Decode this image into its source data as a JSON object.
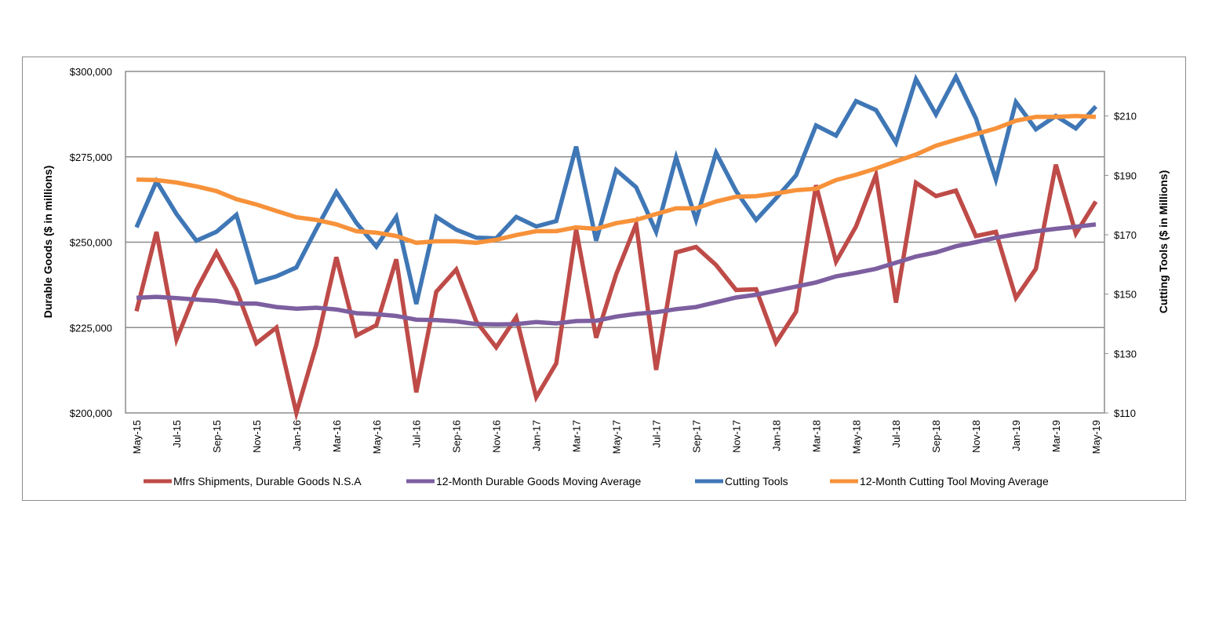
{
  "chart_data": {
    "type": "line",
    "title": "",
    "ylabel": "Durable Goods ($ in millions)",
    "y2label": "Cutting Tools ($ in Millions)",
    "ylim": [
      200000,
      300000
    ],
    "y2lim": [
      110,
      225
    ],
    "yticks": [
      "$200,000",
      "$225,000",
      "$250,000",
      "$275,000",
      "$300,000"
    ],
    "ytick_values": [
      200000,
      225000,
      250000,
      275000,
      300000
    ],
    "y2ticks": [
      "$110",
      "$130",
      "$150",
      "$170",
      "$190",
      "$210"
    ],
    "y2tick_values": [
      110,
      130,
      150,
      170,
      190,
      210
    ],
    "grid": true,
    "legend_placement": "bottom",
    "x": [
      "May-15",
      "Jun-15",
      "Jul-15",
      "Aug-15",
      "Sep-15",
      "Oct-15",
      "Nov-15",
      "Dec-15",
      "Jan-16",
      "Feb-16",
      "Mar-16",
      "Apr-16",
      "May-16",
      "Jun-16",
      "Jul-16",
      "Aug-16",
      "Sep-16",
      "Oct-16",
      "Nov-16",
      "Dec-16",
      "Jan-17",
      "Feb-17",
      "Mar-17",
      "Apr-17",
      "May-17",
      "Jun-17",
      "Jul-17",
      "Aug-17",
      "Sep-17",
      "Oct-17",
      "Nov-17",
      "Dec-17",
      "Jan-18",
      "Feb-18",
      "Mar-18",
      "Apr-18",
      "May-18",
      "Jun-18",
      "Jul-18",
      "Aug-18",
      "Sep-18",
      "Oct-18",
      "Nov-18",
      "Dec-18",
      "Jan-19",
      "Feb-19",
      "Mar-19",
      "Apr-19",
      "May-19"
    ],
    "xtick_labels": [
      "May-15",
      "Jul-15",
      "Sep-15",
      "Nov-15",
      "Jan-16",
      "Mar-16",
      "May-16",
      "Jul-16",
      "Sep-16",
      "Nov-16",
      "Jan-17",
      "Mar-17",
      "May-17",
      "Jul-17",
      "Sep-17",
      "Nov-17",
      "Jan-18",
      "Mar-18",
      "May-18",
      "Jul-18",
      "Sep-18",
      "Nov-18",
      "Jan-19",
      "Mar-19",
      "May-19"
    ],
    "series": [
      {
        "name": "Mfrs Shipments, Durable Goods N.S.A",
        "axis": "left",
        "color": "#be4b48",
        "values": [
          229800,
          253000,
          221500,
          236000,
          247000,
          236000,
          220400,
          225000,
          200000,
          220000,
          245600,
          222700,
          225700,
          245000,
          206000,
          235500,
          242000,
          226800,
          219200,
          228000,
          204600,
          214500,
          253700,
          222000,
          240600,
          255300,
          212600,
          247000,
          248600,
          243300,
          236000,
          236200,
          220600,
          229600,
          266700,
          244300,
          254600,
          269700,
          232300,
          267400,
          263500,
          265100,
          251800,
          253000,
          233700,
          242200,
          272700,
          252500,
          261900
        ]
      },
      {
        "name": "12-Month Durable Goods Moving Average",
        "axis": "left",
        "color": "#7d5fa0",
        "values": [
          233700,
          234000,
          233600,
          233200,
          232800,
          232000,
          232000,
          231000,
          230500,
          230800,
          230300,
          229200,
          228900,
          228400,
          227300,
          227200,
          226800,
          226000,
          225900,
          226000,
          226600,
          226200,
          226900,
          227000,
          228200,
          229000,
          229500,
          230400,
          231000,
          232400,
          233800,
          234600,
          235800,
          237000,
          238200,
          240000,
          241000,
          242200,
          244000,
          245800,
          247000,
          248800,
          250000,
          251300,
          252300,
          253200,
          253900,
          254500,
          255200
        ]
      },
      {
        "name": "Cutting Tools",
        "axis": "right",
        "color": "#3f77b6",
        "values": [
          172.5,
          188,
          177,
          168,
          171,
          176.7,
          154,
          156,
          159,
          172,
          184.4,
          174,
          166,
          176,
          146.7,
          176,
          171.7,
          169,
          168.8,
          176,
          172.8,
          174.6,
          199.7,
          168,
          191.8,
          186,
          171,
          196,
          175,
          197.6,
          184.7,
          175,
          182.3,
          190,
          206.8,
          203.4,
          215,
          212,
          201,
          222.4,
          210.5,
          223.2,
          209.2,
          188.6,
          214.7,
          205.5,
          210,
          205.8,
          213.2
        ]
      },
      {
        "name": "12-Month Cutting Tool Moving Average",
        "axis": "right",
        "color": "#f7923a",
        "values": [
          188.6,
          188.4,
          187.6,
          186.3,
          184.7,
          182,
          180.2,
          178,
          175.9,
          175,
          173.5,
          171.2,
          170.7,
          169.6,
          167.3,
          167.8,
          167.8,
          167.3,
          168.3,
          169.9,
          171.2,
          171.2,
          172.5,
          172,
          173.9,
          175,
          177,
          178.9,
          178.9,
          181.2,
          182.8,
          183,
          183.9,
          185,
          185.5,
          188.4,
          190.2,
          192.3,
          194.7,
          197,
          200,
          202,
          203.9,
          205.8,
          208.4,
          209.7,
          209.7,
          210,
          209.7
        ]
      }
    ]
  }
}
